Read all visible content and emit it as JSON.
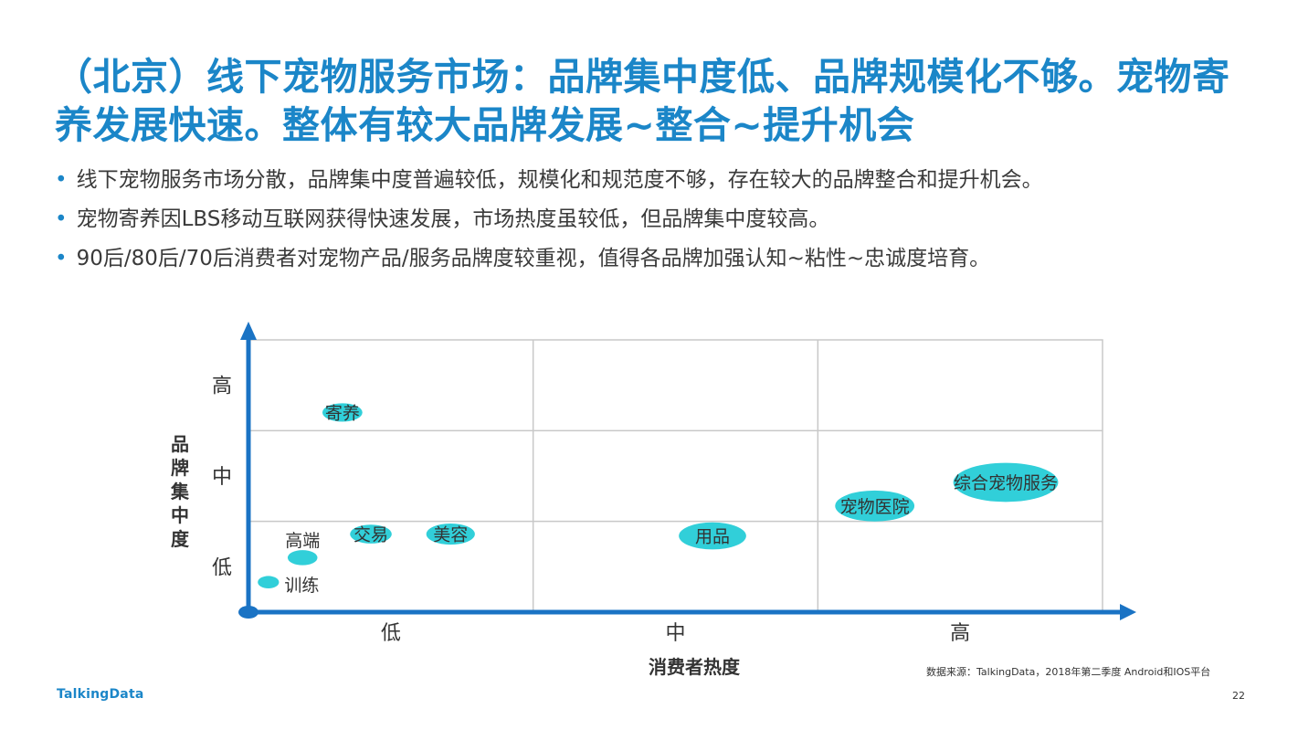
{
  "title": "（北京）线下宠物服务市场：品牌集中度低、品牌规模化不够。宠物寄养发展快速。整体有较大品牌发展~整合~提升机会",
  "bullets": [
    "线下宠物服务市场分散，品牌集中度普遍较低，规模化和规范度不够，存在较大的品牌整合和提升机会。",
    "宠物寄养因LBS移动互联网获得快速发展，市场热度虽较低，但品牌集中度较高。",
    "90后/80后/70后消费者对宠物产品/服务品牌度较重视，值得各品牌加强认知~粘性~忠诚度培育。"
  ],
  "chart_data": {
    "type": "scatter",
    "xlabel": "消费者热度",
    "ylabel": "品牌集中度",
    "x_tick_labels": [
      "低",
      "中",
      "高"
    ],
    "y_tick_labels": [
      "低",
      "中",
      "高"
    ],
    "xlim": [
      0,
      3
    ],
    "ylim": [
      0,
      3
    ],
    "grid": true,
    "bubble_color": "#31cfd9",
    "axis_color": "#1a73c4",
    "points": [
      {
        "label": "寄养",
        "x": 0.33,
        "y": 2.2,
        "size": 0.17,
        "label_position": "center"
      },
      {
        "label": "交易",
        "x": 0.43,
        "y": 0.86,
        "size": 0.18,
        "label_position": "center"
      },
      {
        "label": "美容",
        "x": 0.71,
        "y": 0.86,
        "size": 0.22,
        "label_position": "center"
      },
      {
        "label": "高端",
        "x": 0.19,
        "y": 0.6,
        "size": 0.11,
        "label_position": "above"
      },
      {
        "label": "训练",
        "x": 0.07,
        "y": 0.33,
        "size": 0.06,
        "label_position": "right"
      },
      {
        "label": "用品",
        "x": 1.63,
        "y": 0.84,
        "size": 0.33,
        "label_position": "center"
      },
      {
        "label": "宠物医院",
        "x": 2.2,
        "y": 1.17,
        "size": 0.4,
        "label_position": "center"
      },
      {
        "label": "综合宠物服务",
        "x": 2.66,
        "y": 1.43,
        "size": 0.55,
        "label_position": "center"
      }
    ]
  },
  "footer": {
    "logo": "TalkingData",
    "source": "数据来源：TalkingData，2018年第二季度 Android和IOS平台",
    "page_number": "22"
  }
}
